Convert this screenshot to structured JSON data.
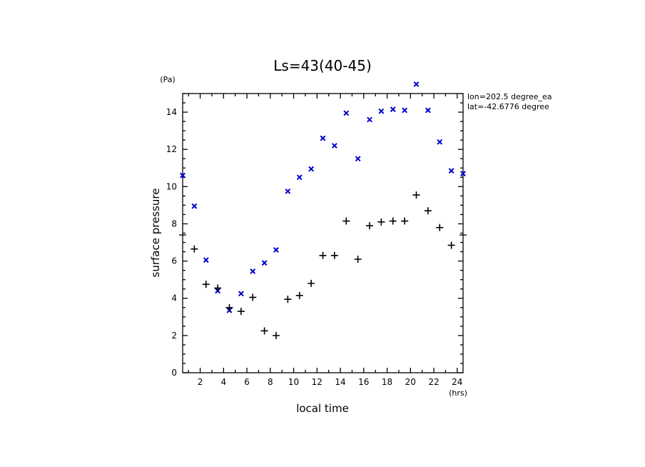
{
  "chart_data": {
    "type": "scatter",
    "title": "Ls=43(40-45)",
    "xlabel": "local time",
    "ylabel": "surface pressure",
    "x_unit": "(hrs)",
    "y_unit": "(Pa)",
    "annotations": [
      "lon=202.5 degree_ea",
      "lat=-42.6776 degree"
    ],
    "xlim": [
      0.5,
      24.5
    ],
    "ylim": [
      0,
      15
    ],
    "x_ticks": [
      2,
      4,
      6,
      8,
      10,
      12,
      14,
      16,
      18,
      20,
      22,
      24
    ],
    "y_ticks": [
      0,
      2,
      4,
      6,
      8,
      10,
      12,
      14
    ],
    "y_break": 7.4,
    "grid": false,
    "series": [
      {
        "marker": "x",
        "color": "#0000cc",
        "x": [
          0.5,
          1.5,
          2.5,
          3.5,
          4.5,
          5.5,
          6.5,
          7.5,
          8.5,
          9.5,
          10.5,
          11.5,
          12.5,
          13.5,
          14.5,
          15.5,
          16.5,
          17.5,
          18.5,
          19.5,
          20.5,
          21.5,
          22.5,
          23.5,
          24.5
        ],
        "y": [
          10.6,
          8.95,
          6.05,
          4.4,
          3.35,
          4.25,
          5.45,
          5.9,
          6.6,
          9.75,
          10.5,
          10.95,
          12.6,
          12.2,
          13.95,
          11.5,
          13.6,
          14.05,
          14.15,
          14.1,
          15.5,
          14.1,
          12.4,
          10.85,
          10.7
        ]
      },
      {
        "marker": "+",
        "color": "#000000",
        "x": [
          1.5,
          2.5,
          3.5,
          4.5,
          5.5,
          6.5,
          7.5,
          8.5,
          9.5,
          10.5,
          11.5,
          12.5,
          13.5,
          14.5,
          15.5,
          16.5,
          17.5,
          18.5,
          19.5,
          20.5,
          21.5,
          22.5,
          23.5
        ],
        "y": [
          6.65,
          4.75,
          4.55,
          3.5,
          3.3,
          4.05,
          2.25,
          2.0,
          3.95,
          4.15,
          4.8,
          6.3,
          6.3,
          8.15,
          6.1,
          7.9,
          8.1,
          8.15,
          8.15,
          9.55,
          8.7,
          7.8,
          6.85
        ]
      }
    ]
  }
}
